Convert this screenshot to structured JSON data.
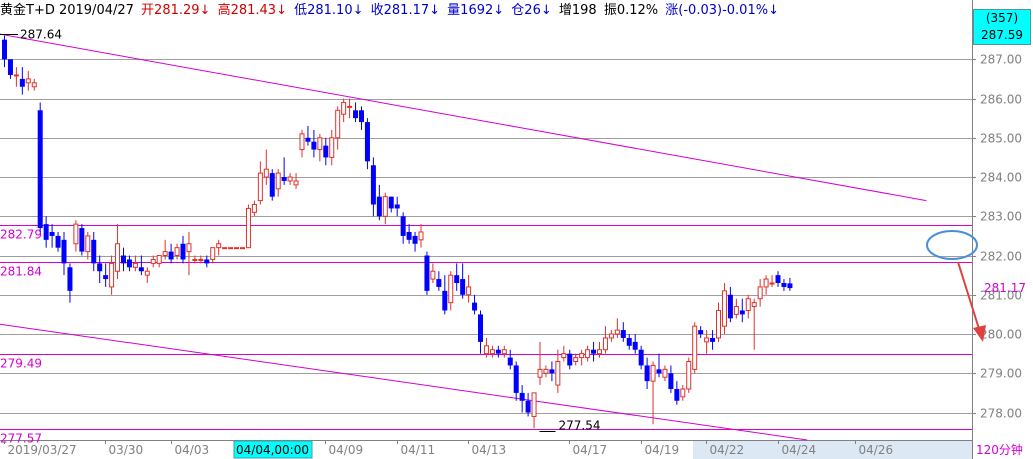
{
  "header": {
    "symbol_date": "黄金T+D 2019/04/27",
    "open": "开281.29↓",
    "high": "高281.43↓",
    "low": "低281.10↓",
    "close": "收281.17↓",
    "volume": "量1692↓",
    "position": "仓26↓",
    "increase": "增198",
    "amplitude": "振0.12%",
    "change": "涨(-0.03)-0.01%↓"
  },
  "side_panel": {
    "bar_count": "(357)",
    "crosshair_price": "287.59",
    "last_price": "281.17",
    "period_label": "120分钟"
  },
  "annotations": {
    "high_marker": "287.64",
    "low_marker": "277.54",
    "crosshair_time": "04/04,00:00"
  },
  "colors": {
    "up": "#e0302a",
    "down": "#0000ff",
    "trendline": "#d400d4",
    "grid": "#9e9e9e",
    "crosshair_box": "#00ffff",
    "circle": "#4a8fd6",
    "arrow": "#e04040"
  },
  "chart_data": {
    "type": "candlestick",
    "ylim": [
      277.3,
      287.95
    ],
    "yticks": [
      278.0,
      279.0,
      280.0,
      281.0,
      282.0,
      283.0,
      284.0,
      285.0,
      286.0,
      287.0
    ],
    "ytick_labels": [
      "278.00",
      "279.00",
      "280.00",
      "281.00",
      "282.00",
      "283.00",
      "284.00",
      "285.00",
      "286.00",
      "287.00"
    ],
    "xticks": [
      {
        "idx": 0,
        "label": "2019/03/27"
      },
      {
        "idx": 17,
        "label": "03/30"
      },
      {
        "idx": 28,
        "label": "04/03"
      },
      {
        "idx": 54,
        "label": "04/09"
      },
      {
        "idx": 66,
        "label": "04/11"
      },
      {
        "idx": 78,
        "label": "04/13"
      },
      {
        "idx": 95,
        "label": "04/17"
      },
      {
        "idx": 107,
        "label": "04/19"
      },
      {
        "idx": 118,
        "label": "04/22"
      },
      {
        "idx": 130,
        "label": "04/24"
      },
      {
        "idx": 143,
        "label": "04/26"
      }
    ],
    "horizontal_lines": [
      {
        "price": 282.79,
        "label": "282.79"
      },
      {
        "price": 281.84,
        "label": "281.84"
      },
      {
        "price": 279.49,
        "label": "279.49"
      },
      {
        "price": 277.57,
        "label": "277.57"
      }
    ],
    "trendlines": [
      {
        "from": [
          0,
          287.64
        ],
        "to": [
          155,
          283.4
        ]
      },
      {
        "from": [
          0,
          280.25
        ],
        "to": [
          135,
          277.3
        ]
      }
    ],
    "candles": [
      [
        287.5,
        287.6,
        286.8,
        287.0
      ],
      [
        287.0,
        287.0,
        286.5,
        286.6
      ],
      [
        286.6,
        286.8,
        286.3,
        286.6
      ],
      [
        286.5,
        286.8,
        286.1,
        286.3
      ],
      [
        286.4,
        286.7,
        286.2,
        286.5
      ],
      [
        286.3,
        286.5,
        286.2,
        286.4
      ],
      [
        285.7,
        285.9,
        282.6,
        282.7
      ],
      [
        282.8,
        283.0,
        282.2,
        282.4
      ],
      [
        282.6,
        282.8,
        282.2,
        282.5
      ],
      [
        282.5,
        282.6,
        282.1,
        282.2
      ],
      [
        282.4,
        282.6,
        281.5,
        281.8
      ],
      [
        281.7,
        281.8,
        280.8,
        281.1
      ],
      [
        282.3,
        282.9,
        282.1,
        282.8
      ],
      [
        282.7,
        282.8,
        282.0,
        282.1
      ],
      [
        282.1,
        282.6,
        281.9,
        282.5
      ],
      [
        282.4,
        282.6,
        281.6,
        281.8
      ],
      [
        281.8,
        282.0,
        281.3,
        281.6
      ],
      [
        281.5,
        281.8,
        281.2,
        281.4
      ],
      [
        281.2,
        282.0,
        281.0,
        281.8
      ],
      [
        281.6,
        282.8,
        281.4,
        282.3
      ],
      [
        282.0,
        282.2,
        281.6,
        281.8
      ],
      [
        281.9,
        282.0,
        281.6,
        281.7
      ],
      [
        281.7,
        282.0,
        281.6,
        281.8
      ],
      [
        281.7,
        282.0,
        281.5,
        281.6
      ],
      [
        281.5,
        281.7,
        281.3,
        281.6
      ],
      [
        281.8,
        282.0,
        281.7,
        281.9
      ],
      [
        281.8,
        282.0,
        281.7,
        282.0
      ],
      [
        282.0,
        282.4,
        281.9,
        282.1
      ],
      [
        282.1,
        282.3,
        281.8,
        281.9
      ],
      [
        282.0,
        282.3,
        281.9,
        282.2
      ],
      [
        282.3,
        282.5,
        281.8,
        281.9
      ],
      [
        282.1,
        282.6,
        281.5,
        282.3
      ],
      [
        281.9,
        282.0,
        281.8,
        281.9
      ],
      [
        281.9,
        282.0,
        281.8,
        281.9
      ],
      [
        281.9,
        282.0,
        281.7,
        281.8
      ],
      [
        281.9,
        282.2,
        281.8,
        282.2
      ],
      [
        282.2,
        282.4,
        282.0,
        282.3
      ],
      [
        282.2,
        282.2,
        282.2,
        282.2
      ],
      [
        282.2,
        282.2,
        282.2,
        282.2
      ],
      [
        282.2,
        282.2,
        282.2,
        282.2
      ],
      [
        282.2,
        282.2,
        282.2,
        282.2
      ],
      [
        282.2,
        283.3,
        282.2,
        283.2
      ],
      [
        283.1,
        283.4,
        283.0,
        283.3
      ],
      [
        283.4,
        284.4,
        283.3,
        284.1
      ],
      [
        284.0,
        284.7,
        283.8,
        284.2
      ],
      [
        284.1,
        284.2,
        283.4,
        283.5
      ],
      [
        283.7,
        284.2,
        283.5,
        284.1
      ],
      [
        284.0,
        284.5,
        283.8,
        283.9
      ],
      [
        283.9,
        284.1,
        283.8,
        284.0
      ],
      [
        283.8,
        284.1,
        283.7,
        283.9
      ],
      [
        284.7,
        285.2,
        284.5,
        285.1
      ],
      [
        285.0,
        285.3,
        284.8,
        284.9
      ],
      [
        284.9,
        285.2,
        284.5,
        284.7
      ],
      [
        284.7,
        285.1,
        284.4,
        285.0
      ],
      [
        284.8,
        285.0,
        284.3,
        284.5
      ],
      [
        284.5,
        285.2,
        284.3,
        285.0
      ],
      [
        285.0,
        285.8,
        284.7,
        285.7
      ],
      [
        285.6,
        286.0,
        285.4,
        285.9
      ],
      [
        285.8,
        286.0,
        285.5,
        285.8
      ],
      [
        285.7,
        285.9,
        285.4,
        285.5
      ],
      [
        285.7,
        285.8,
        285.2,
        285.4
      ],
      [
        285.4,
        285.5,
        284.2,
        284.4
      ],
      [
        284.3,
        284.5,
        283.0,
        283.3
      ],
      [
        283.5,
        283.8,
        282.9,
        283.0
      ],
      [
        283.0,
        283.6,
        282.8,
        283.5
      ],
      [
        283.5,
        283.5,
        283.1,
        283.2
      ],
      [
        283.3,
        283.5,
        283.0,
        283.2
      ],
      [
        283.0,
        283.1,
        282.3,
        282.5
      ],
      [
        282.6,
        282.8,
        282.3,
        282.4
      ],
      [
        282.5,
        282.6,
        282.1,
        282.3
      ],
      [
        282.4,
        282.8,
        282.2,
        282.6
      ],
      [
        282.0,
        282.1,
        281.0,
        281.1
      ],
      [
        281.4,
        281.8,
        281.3,
        281.6
      ],
      [
        281.4,
        281.6,
        281.1,
        281.2
      ],
      [
        281.1,
        281.5,
        280.5,
        280.6
      ],
      [
        280.8,
        281.6,
        280.6,
        281.5
      ],
      [
        281.5,
        281.8,
        281.1,
        281.3
      ],
      [
        281.4,
        281.8,
        280.9,
        281.0
      ],
      [
        281.0,
        281.5,
        280.8,
        281.2
      ],
      [
        280.8,
        281.0,
        280.5,
        280.6
      ],
      [
        280.5,
        280.6,
        279.5,
        279.8
      ],
      [
        279.5,
        279.9,
        279.4,
        279.7
      ],
      [
        279.5,
        279.7,
        279.4,
        279.6
      ],
      [
        279.6,
        279.7,
        279.4,
        279.5
      ],
      [
        279.5,
        279.7,
        279.4,
        279.6
      ],
      [
        279.4,
        279.6,
        279.1,
        279.2
      ],
      [
        279.2,
        279.3,
        278.3,
        278.5
      ],
      [
        278.5,
        278.7,
        278.0,
        278.3
      ],
      [
        278.3,
        278.5,
        277.9,
        278.0
      ],
      [
        277.9,
        278.5,
        277.6,
        278.5
      ],
      [
        278.9,
        279.8,
        278.7,
        279.1
      ],
      [
        279.0,
        279.2,
        278.9,
        279.1
      ],
      [
        279.1,
        279.3,
        278.8,
        279.0
      ],
      [
        278.7,
        279.6,
        278.5,
        279.3
      ],
      [
        279.4,
        279.7,
        279.3,
        279.5
      ],
      [
        279.5,
        279.6,
        279.1,
        279.2
      ],
      [
        279.3,
        279.5,
        279.2,
        279.4
      ],
      [
        279.4,
        279.6,
        279.2,
        279.5
      ],
      [
        279.4,
        279.7,
        279.3,
        279.6
      ],
      [
        279.6,
        279.8,
        279.3,
        279.5
      ],
      [
        279.5,
        279.8,
        279.4,
        279.6
      ],
      [
        279.6,
        280.2,
        279.5,
        279.9
      ],
      [
        279.9,
        280.1,
        279.8,
        280.0
      ],
      [
        280.0,
        280.4,
        279.9,
        280.1
      ],
      [
        280.1,
        280.3,
        279.8,
        279.9
      ],
      [
        279.9,
        280.0,
        279.6,
        279.7
      ],
      [
        279.8,
        280.0,
        279.5,
        279.6
      ],
      [
        279.6,
        279.7,
        279.1,
        279.2
      ],
      [
        279.2,
        279.4,
        278.6,
        278.8
      ],
      [
        278.8,
        279.3,
        277.7,
        279.2
      ],
      [
        279.1,
        279.5,
        278.9,
        279.0
      ],
      [
        278.9,
        279.2,
        278.8,
        279.1
      ],
      [
        279.0,
        279.2,
        278.5,
        278.6
      ],
      [
        278.6,
        278.8,
        278.2,
        278.3
      ],
      [
        278.4,
        278.7,
        278.3,
        278.6
      ],
      [
        278.6,
        279.4,
        278.5,
        279.3
      ],
      [
        279.1,
        280.3,
        279.0,
        280.2
      ],
      [
        280.1,
        280.2,
        279.9,
        280.0
      ],
      [
        279.8,
        280.1,
        279.5,
        279.9
      ],
      [
        279.9,
        280.1,
        279.6,
        279.8
      ],
      [
        279.9,
        280.8,
        279.8,
        280.6
      ],
      [
        280.2,
        281.3,
        280.0,
        281.1
      ],
      [
        281.0,
        281.2,
        280.3,
        280.4
      ],
      [
        280.5,
        280.9,
        280.4,
        280.7
      ],
      [
        280.6,
        280.9,
        280.3,
        280.5
      ],
      [
        280.6,
        281.0,
        280.4,
        280.9
      ],
      [
        280.7,
        280.9,
        279.6,
        280.8
      ],
      [
        280.9,
        281.4,
        280.7,
        281.2
      ],
      [
        281.2,
        281.5,
        281.0,
        281.4
      ],
      [
        281.3,
        281.5,
        281.2,
        281.3
      ],
      [
        281.5,
        281.6,
        281.2,
        281.3
      ],
      [
        281.3,
        281.4,
        281.1,
        281.2
      ],
      [
        281.29,
        281.43,
        281.1,
        281.17
      ]
    ]
  }
}
